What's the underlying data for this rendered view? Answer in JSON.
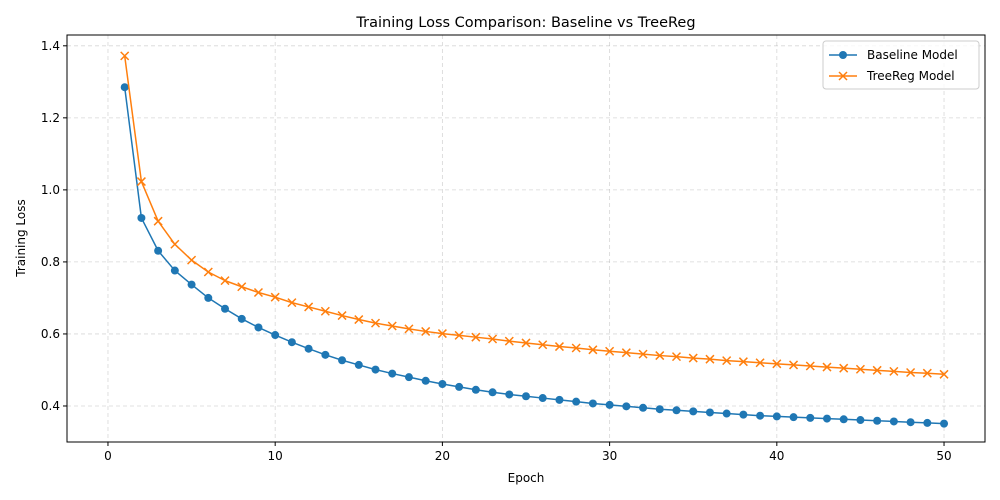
{
  "chart_data": {
    "type": "line",
    "title": "Training Loss Comparison: Baseline vs TreeReg",
    "xlabel": "Epoch",
    "ylabel": "Training Loss",
    "xlim": [
      -2.45,
      52.45
    ],
    "ylim": [
      0.3,
      1.43
    ],
    "xticks": [
      0,
      10,
      20,
      30,
      40,
      50
    ],
    "yticks": [
      0.4,
      0.6,
      0.8,
      1.0,
      1.2,
      1.4
    ],
    "ytick_labels": [
      "0.4",
      "0.6",
      "0.8",
      "1.0",
      "1.2",
      "1.4"
    ],
    "grid": true,
    "legend_position": "top-right",
    "x": [
      1,
      2,
      3,
      4,
      5,
      6,
      7,
      8,
      9,
      10,
      11,
      12,
      13,
      14,
      15,
      16,
      17,
      18,
      19,
      20,
      21,
      22,
      23,
      24,
      25,
      26,
      27,
      28,
      29,
      30,
      31,
      32,
      33,
      34,
      35,
      36,
      37,
      38,
      39,
      40,
      41,
      42,
      43,
      44,
      45,
      46,
      47,
      48,
      49,
      50
    ],
    "series": [
      {
        "name": "Baseline Model",
        "color": "#1f77b4",
        "marker": "circle",
        "values": [
          1.285,
          0.922,
          0.831,
          0.776,
          0.737,
          0.7,
          0.67,
          0.642,
          0.618,
          0.597,
          0.577,
          0.559,
          0.542,
          0.527,
          0.514,
          0.501,
          0.49,
          0.48,
          0.47,
          0.461,
          0.453,
          0.445,
          0.438,
          0.432,
          0.427,
          0.422,
          0.417,
          0.412,
          0.407,
          0.403,
          0.399,
          0.395,
          0.391,
          0.388,
          0.385,
          0.382,
          0.379,
          0.376,
          0.373,
          0.371,
          0.369,
          0.367,
          0.365,
          0.363,
          0.361,
          0.359,
          0.357,
          0.355,
          0.353,
          0.351
        ]
      },
      {
        "name": "TreeReg Model",
        "color": "#ff7f0e",
        "marker": "x",
        "values": [
          1.372,
          1.023,
          0.913,
          0.849,
          0.805,
          0.772,
          0.748,
          0.731,
          0.715,
          0.702,
          0.687,
          0.675,
          0.663,
          0.651,
          0.64,
          0.63,
          0.622,
          0.614,
          0.607,
          0.601,
          0.596,
          0.591,
          0.586,
          0.58,
          0.575,
          0.57,
          0.565,
          0.561,
          0.556,
          0.552,
          0.548,
          0.544,
          0.54,
          0.537,
          0.533,
          0.53,
          0.526,
          0.523,
          0.52,
          0.517,
          0.514,
          0.511,
          0.508,
          0.505,
          0.502,
          0.499,
          0.496,
          0.493,
          0.491,
          0.488
        ]
      }
    ]
  }
}
